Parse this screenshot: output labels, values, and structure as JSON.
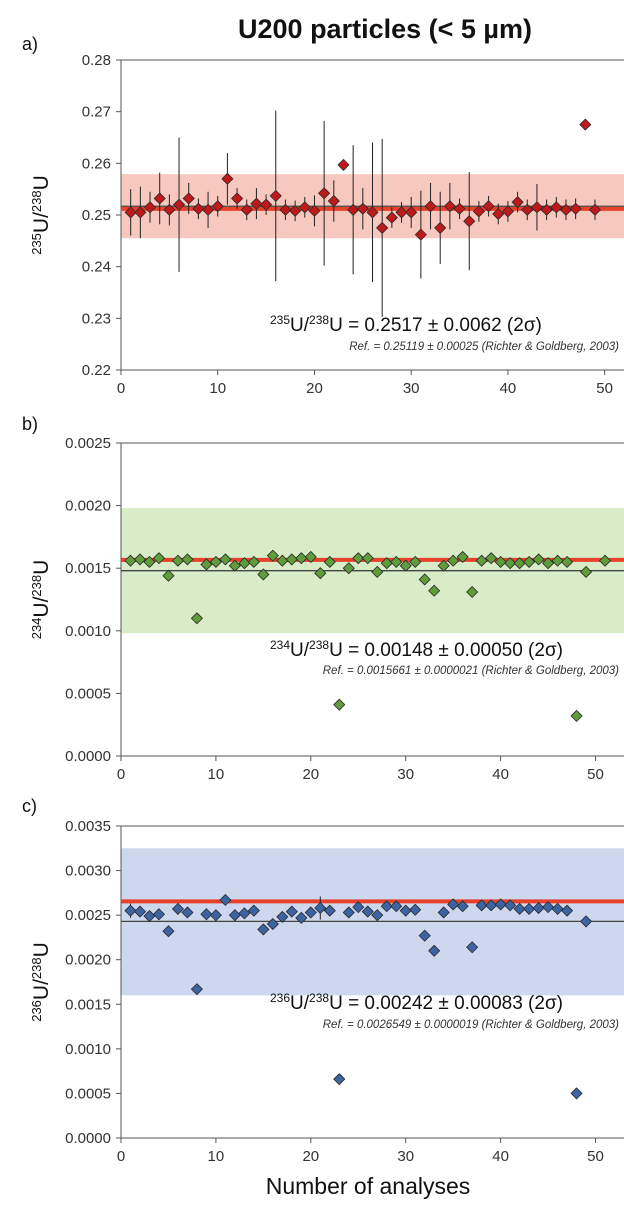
{
  "title": "U200 particles (< 5 µm)",
  "xlabel": "Number of analyses",
  "colors": {
    "reference_line": "#e8412b",
    "mean_line": "#444444"
  },
  "chart_data": [
    {
      "panel": "a)",
      "type": "scatter",
      "ylabel": {
        "iso1": "235",
        "iso2": "238"
      },
      "xlim": [
        0,
        52
      ],
      "ylim": [
        0.22,
        0.28
      ],
      "xticks": [
        0,
        10,
        20,
        30,
        40,
        50
      ],
      "yticks": [
        "0.22",
        "0.23",
        "0.24",
        "0.25",
        "0.26",
        "0.27",
        "0.28"
      ],
      "marker_color": "#c0191c",
      "band_color": "#f7c8be",
      "mean": 0.2517,
      "band": [
        0.2455,
        0.2579
      ],
      "reference": 0.25119,
      "annotation": {
        "iso1": "235",
        "iso2": "238",
        "text": "U = 0.2517 ± 0.0062 (2σ)"
      },
      "ref_text": "Ref. = 0.25119 ± 0.00025 (Richter & Goldberg, 2003)",
      "points": [
        {
          "x": 1,
          "y": 0.2505,
          "err": 0.0045
        },
        {
          "x": 2,
          "y": 0.2505,
          "err": 0.005
        },
        {
          "x": 3,
          "y": 0.2515,
          "err": 0.003
        },
        {
          "x": 4,
          "y": 0.2532,
          "err": 0.005
        },
        {
          "x": 5,
          "y": 0.251,
          "err": 0.003
        },
        {
          "x": 6,
          "y": 0.252,
          "err": 0.013
        },
        {
          "x": 7,
          "y": 0.2532,
          "err": 0.003
        },
        {
          "x": 8,
          "y": 0.2512,
          "err": 0.002
        },
        {
          "x": 9,
          "y": 0.251,
          "err": 0.0035
        },
        {
          "x": 10,
          "y": 0.2517,
          "err": 0.002
        },
        {
          "x": 11,
          "y": 0.257,
          "err": 0.005
        },
        {
          "x": 12,
          "y": 0.2532,
          "err": 0.002
        },
        {
          "x": 13,
          "y": 0.251,
          "err": 0.002
        },
        {
          "x": 14,
          "y": 0.2522,
          "err": 0.003
        },
        {
          "x": 15,
          "y": 0.252,
          "err": 0.002
        },
        {
          "x": 16,
          "y": 0.2537,
          "err": 0.0165
        },
        {
          "x": 17,
          "y": 0.251,
          "err": 0.002
        },
        {
          "x": 18,
          "y": 0.2508,
          "err": 0.002
        },
        {
          "x": 19,
          "y": 0.2515,
          "err": 0.002
        },
        {
          "x": 20,
          "y": 0.2508,
          "err": 0.003
        },
        {
          "x": 21,
          "y": 0.2542,
          "err": 0.014
        },
        {
          "x": 22,
          "y": 0.2527,
          "err": 0.004
        },
        {
          "x": 23,
          "y": 0.2597,
          "err": 0.001
        },
        {
          "x": 24,
          "y": 0.251,
          "err": 0.0125
        },
        {
          "x": 25,
          "y": 0.2512,
          "err": 0.004
        },
        {
          "x": 26,
          "y": 0.2505,
          "err": 0.0135
        },
        {
          "x": 27,
          "y": 0.2475,
          "err": 0.0172
        },
        {
          "x": 28,
          "y": 0.2495,
          "err": 0.002
        },
        {
          "x": 29,
          "y": 0.2505,
          "err": 0.002
        },
        {
          "x": 30,
          "y": 0.2505,
          "err": 0.003
        },
        {
          "x": 31,
          "y": 0.2462,
          "err": 0.0085
        },
        {
          "x": 32,
          "y": 0.2517,
          "err": 0.0045
        },
        {
          "x": 33,
          "y": 0.2475,
          "err": 0.007
        },
        {
          "x": 34,
          "y": 0.2517,
          "err": 0.0045
        },
        {
          "x": 35,
          "y": 0.2512,
          "err": 0.002
        },
        {
          "x": 36,
          "y": 0.2488,
          "err": 0.0095
        },
        {
          "x": 37,
          "y": 0.2507,
          "err": 0.002
        },
        {
          "x": 38,
          "y": 0.2517,
          "err": 0.002
        },
        {
          "x": 39,
          "y": 0.2502,
          "err": 0.002
        },
        {
          "x": 40,
          "y": 0.2507,
          "err": 0.002
        },
        {
          "x": 41,
          "y": 0.2525,
          "err": 0.002
        },
        {
          "x": 42,
          "y": 0.251,
          "err": 0.002
        },
        {
          "x": 43,
          "y": 0.2515,
          "err": 0.0045
        },
        {
          "x": 44,
          "y": 0.251,
          "err": 0.002
        },
        {
          "x": 45,
          "y": 0.2515,
          "err": 0.002
        },
        {
          "x": 46,
          "y": 0.251,
          "err": 0.002
        },
        {
          "x": 47,
          "y": 0.2512,
          "err": 0.002
        },
        {
          "x": 48,
          "y": 0.2675,
          "err": 0
        },
        {
          "x": 49,
          "y": 0.251,
          "err": 0.002
        }
      ]
    },
    {
      "panel": "b)",
      "type": "scatter",
      "ylabel": {
        "iso1": "234",
        "iso2": "238"
      },
      "xlim": [
        0,
        53
      ],
      "ylim": [
        0,
        0.0025
      ],
      "xticks": [
        0,
        10,
        20,
        30,
        40,
        50
      ],
      "yticks": [
        "0.0000",
        "0.0005",
        "0.0010",
        "0.0015",
        "0.0020",
        "0.0025"
      ],
      "marker_color": "#5f9c3a",
      "band_color": "#d9ecc8",
      "mean": 0.00148,
      "band": [
        0.00098,
        0.00198
      ],
      "reference": 0.0015661,
      "annotation": {
        "iso1": "234",
        "iso2": "238",
        "text": "U = 0.00148 ± 0.00050 (2σ)"
      },
      "ref_text": "Ref. = 0.0015661 ± 0.0000021 (Richter & Goldberg, 2003)",
      "points": [
        {
          "x": 1,
          "y": 0.00156
        },
        {
          "x": 2,
          "y": 0.00157
        },
        {
          "x": 3,
          "y": 0.00155
        },
        {
          "x": 4,
          "y": 0.00158
        },
        {
          "x": 5,
          "y": 0.00144
        },
        {
          "x": 6,
          "y": 0.00156
        },
        {
          "x": 7,
          "y": 0.00157
        },
        {
          "x": 8,
          "y": 0.0011
        },
        {
          "x": 9,
          "y": 0.00153
        },
        {
          "x": 10,
          "y": 0.00155
        },
        {
          "x": 11,
          "y": 0.00157
        },
        {
          "x": 12,
          "y": 0.00152
        },
        {
          "x": 13,
          "y": 0.00154
        },
        {
          "x": 14,
          "y": 0.00155
        },
        {
          "x": 15,
          "y": 0.00145
        },
        {
          "x": 16,
          "y": 0.0016
        },
        {
          "x": 17,
          "y": 0.00156
        },
        {
          "x": 18,
          "y": 0.00157
        },
        {
          "x": 19,
          "y": 0.00158
        },
        {
          "x": 20,
          "y": 0.00159
        },
        {
          "x": 21,
          "y": 0.00146
        },
        {
          "x": 22,
          "y": 0.00155
        },
        {
          "x": 23,
          "y": 0.00041
        },
        {
          "x": 24,
          "y": 0.0015
        },
        {
          "x": 25,
          "y": 0.00158
        },
        {
          "x": 26,
          "y": 0.00158
        },
        {
          "x": 27,
          "y": 0.00147
        },
        {
          "x": 28,
          "y": 0.00154
        },
        {
          "x": 29,
          "y": 0.00155
        },
        {
          "x": 30,
          "y": 0.00152
        },
        {
          "x": 31,
          "y": 0.00155
        },
        {
          "x": 32,
          "y": 0.00141
        },
        {
          "x": 33,
          "y": 0.00132
        },
        {
          "x": 34,
          "y": 0.00152
        },
        {
          "x": 35,
          "y": 0.00156
        },
        {
          "x": 36,
          "y": 0.00159
        },
        {
          "x": 37,
          "y": 0.00131
        },
        {
          "x": 38,
          "y": 0.00156
        },
        {
          "x": 39,
          "y": 0.00158
        },
        {
          "x": 40,
          "y": 0.00155
        },
        {
          "x": 41,
          "y": 0.00154
        },
        {
          "x": 42,
          "y": 0.00154
        },
        {
          "x": 43,
          "y": 0.00155
        },
        {
          "x": 44,
          "y": 0.00157
        },
        {
          "x": 45,
          "y": 0.00154
        },
        {
          "x": 46,
          "y": 0.00156
        },
        {
          "x": 47,
          "y": 0.00155
        },
        {
          "x": 48,
          "y": 0.00032
        },
        {
          "x": 49,
          "y": 0.00147
        },
        {
          "x": 51,
          "y": 0.00156
        }
      ]
    },
    {
      "panel": "c)",
      "type": "scatter",
      "ylabel": {
        "iso1": "236",
        "iso2": "238"
      },
      "xlim": [
        0,
        53
      ],
      "ylim": [
        0,
        0.0035
      ],
      "xticks": [
        0,
        10,
        20,
        30,
        40,
        50
      ],
      "yticks": [
        "0.0000",
        "0.0005",
        "0.0010",
        "0.0015",
        "0.0020",
        "0.0025",
        "0.0030",
        "0.0035"
      ],
      "marker_color": "#3c64a3",
      "band_color": "#cdd7ee",
      "mean": 0.00243,
      "band": [
        0.0016,
        0.00325
      ],
      "reference": 0.0026549,
      "annotation": {
        "iso1": "236",
        "iso2": "238",
        "text": "U = 0.00242 ± 0.00083 (2σ)"
      },
      "ref_text": "Ref. = 0.0026549 ± 0.0000019 (Richter & Goldberg, 2003)",
      "points": [
        {
          "x": 1,
          "y": 0.00255,
          "err": 8e-05
        },
        {
          "x": 2,
          "y": 0.00254
        },
        {
          "x": 3,
          "y": 0.00249
        },
        {
          "x": 4,
          "y": 0.00251
        },
        {
          "x": 5,
          "y": 0.00232
        },
        {
          "x": 6,
          "y": 0.00257
        },
        {
          "x": 7,
          "y": 0.00253
        },
        {
          "x": 8,
          "y": 0.00167
        },
        {
          "x": 9,
          "y": 0.00251
        },
        {
          "x": 10,
          "y": 0.0025
        },
        {
          "x": 11,
          "y": 0.00267
        },
        {
          "x": 12,
          "y": 0.0025
        },
        {
          "x": 13,
          "y": 0.00252
        },
        {
          "x": 14,
          "y": 0.00255
        },
        {
          "x": 15,
          "y": 0.00234
        },
        {
          "x": 16,
          "y": 0.0024
        },
        {
          "x": 17,
          "y": 0.00248
        },
        {
          "x": 18,
          "y": 0.00254
        },
        {
          "x": 19,
          "y": 0.00247
        },
        {
          "x": 20,
          "y": 0.00253
        },
        {
          "x": 21,
          "y": 0.00258,
          "err": 0.00013
        },
        {
          "x": 22,
          "y": 0.00255
        },
        {
          "x": 23,
          "y": 0.00066
        },
        {
          "x": 24,
          "y": 0.00253
        },
        {
          "x": 25,
          "y": 0.00259
        },
        {
          "x": 26,
          "y": 0.00254
        },
        {
          "x": 27,
          "y": 0.0025
        },
        {
          "x": 28,
          "y": 0.0026
        },
        {
          "x": 29,
          "y": 0.0026
        },
        {
          "x": 30,
          "y": 0.00255
        },
        {
          "x": 31,
          "y": 0.00256
        },
        {
          "x": 32,
          "y": 0.00227
        },
        {
          "x": 33,
          "y": 0.0021
        },
        {
          "x": 34,
          "y": 0.00253
        },
        {
          "x": 35,
          "y": 0.00262
        },
        {
          "x": 36,
          "y": 0.0026
        },
        {
          "x": 37,
          "y": 0.00214
        },
        {
          "x": 38,
          "y": 0.00261
        },
        {
          "x": 39,
          "y": 0.00261
        },
        {
          "x": 40,
          "y": 0.00262
        },
        {
          "x": 41,
          "y": 0.00261
        },
        {
          "x": 42,
          "y": 0.00257
        },
        {
          "x": 43,
          "y": 0.00257
        },
        {
          "x": 44,
          "y": 0.00258
        },
        {
          "x": 45,
          "y": 0.00259
        },
        {
          "x": 46,
          "y": 0.00257
        },
        {
          "x": 47,
          "y": 0.00255
        },
        {
          "x": 48,
          "y": 0.0005
        },
        {
          "x": 49,
          "y": 0.00243
        }
      ]
    }
  ]
}
